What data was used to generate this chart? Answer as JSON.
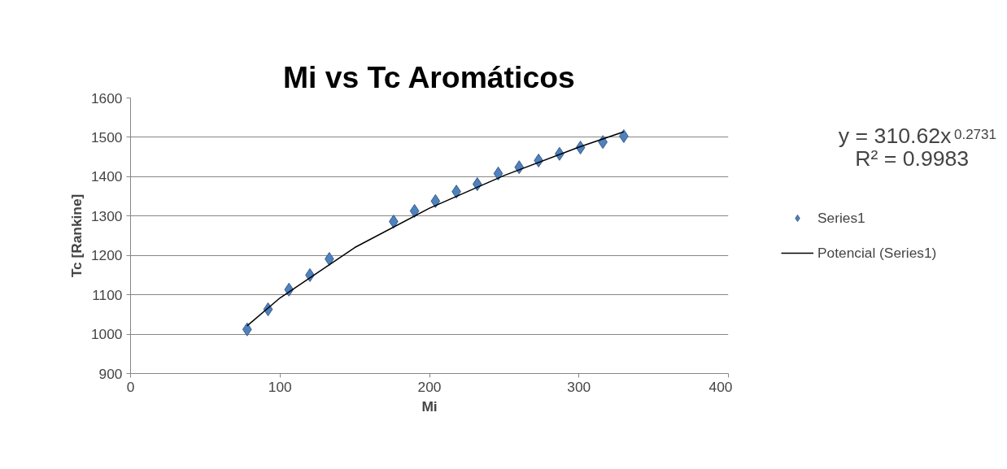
{
  "chart_data": {
    "type": "scatter",
    "title": "Mi vs Tc Aromáticos",
    "xlabel": "Mi",
    "ylabel": "Tc [Rankine]",
    "xlim": [
      0,
      400
    ],
    "xticks": [
      0,
      100,
      200,
      300,
      400
    ],
    "ylim": [
      900,
      1600
    ],
    "yticks": [
      900,
      1000,
      1100,
      1200,
      1300,
      1400,
      1500,
      1600
    ],
    "grid": "y",
    "legend": "right",
    "marker": "diamond",
    "annotations": [
      "y = 310.62x$^{0.2731}$",
      "R² = 0.9983"
    ],
    "series": [
      {
        "name": "Series1",
        "type": "scatter",
        "color": "#4f81bd",
        "x": [
          78,
          92,
          106,
          120,
          133,
          176,
          190,
          204,
          218,
          232,
          246,
          260,
          273,
          287,
          301,
          316,
          330
        ],
        "values": [
          1012,
          1063,
          1113,
          1150,
          1191,
          1286,
          1313,
          1338,
          1362,
          1381,
          1408,
          1424,
          1441,
          1458,
          1474,
          1488,
          1503
        ]
      },
      {
        "name": "Potencial (Series1)",
        "type": "line",
        "marker": "none",
        "color": "#000000",
        "x": [
          78,
          100,
          150,
          200,
          250,
          300,
          330
        ],
        "values": [
          1021,
          1092,
          1220,
          1320,
          1403,
          1475,
          1514
        ]
      }
    ]
  }
}
